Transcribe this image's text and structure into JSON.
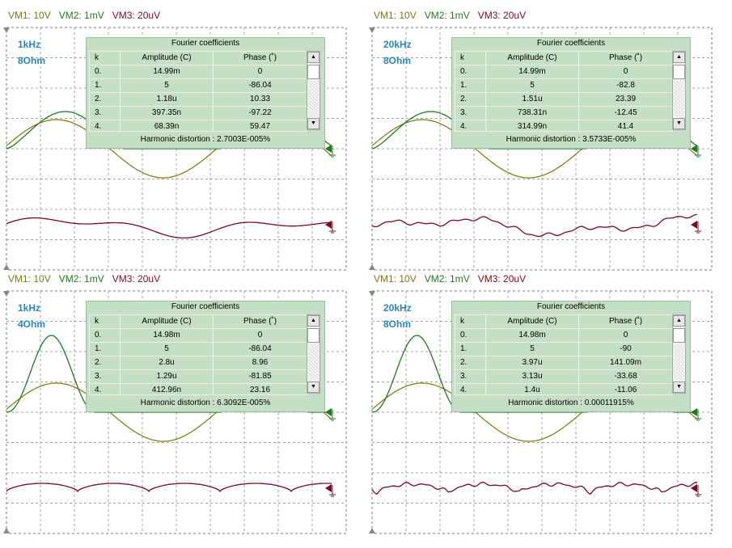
{
  "colors": {
    "vm1": "#7a7a0a",
    "vm2": "#1f7a1f",
    "vm3": "#7a0a1f",
    "annotation": "#2a86b8",
    "panel_bg": "#c4dfc4",
    "grid": "#9a9a9a"
  },
  "fourier_columns": {
    "k": "k",
    "amplitude": "Amplitude (C)",
    "phase": "Phase (˚)"
  },
  "panels": [
    {
      "legend": {
        "vm1": "VM1: 10V",
        "vm2": "VM2: 1mV",
        "vm3": "VM3: 20uV"
      },
      "annotation": [
        "1kHz",
        "8Ohm"
      ],
      "fourier": {
        "title": "Fourier coefficients",
        "rows": [
          {
            "k": "0.",
            "amplitude": "14.99m",
            "phase": "0"
          },
          {
            "k": "1.",
            "amplitude": "5",
            "phase": "-86.04"
          },
          {
            "k": "2.",
            "amplitude": "1.18u",
            "phase": "10.33"
          },
          {
            "k": "3.",
            "amplitude": "397.35n",
            "phase": "-97.22"
          },
          {
            "k": "4.",
            "amplitude": "68.39n",
            "phase": "59.47"
          }
        ],
        "distortion_label": "Harmonic distortion :",
        "distortion_value": "2.7003E-005%"
      }
    },
    {
      "legend": {
        "vm1": "VM1: 10V",
        "vm2": "VM2: 1mV",
        "vm3": "VM3: 20uV"
      },
      "annotation": [
        "20kHz",
        "8Ohm"
      ],
      "fourier": {
        "title": "Fourier coefficients",
        "rows": [
          {
            "k": "0.",
            "amplitude": "14.99m",
            "phase": "0"
          },
          {
            "k": "1.",
            "amplitude": "5",
            "phase": "-82.8"
          },
          {
            "k": "2.",
            "amplitude": "1.51u",
            "phase": "23.39"
          },
          {
            "k": "3.",
            "amplitude": "738.31n",
            "phase": "-12.45"
          },
          {
            "k": "4.",
            "amplitude": "314.99n",
            "phase": "41.4"
          }
        ],
        "distortion_label": "Harmonic distortion :",
        "distortion_value": "3.5733E-005%"
      }
    },
    {
      "legend": {
        "vm1": "VM1: 10V",
        "vm2": "VM2: 1mV",
        "vm3": "VM3: 20uV"
      },
      "annotation": [
        "1kHz",
        "4Ohm"
      ],
      "fourier": {
        "title": "Fourier coefficients",
        "rows": [
          {
            "k": "0.",
            "amplitude": "14.98m",
            "phase": "0"
          },
          {
            "k": "1.",
            "amplitude": "5",
            "phase": "-86.04"
          },
          {
            "k": "2.",
            "amplitude": "2.8u",
            "phase": "8.96"
          },
          {
            "k": "3.",
            "amplitude": "1.29u",
            "phase": "-81.85"
          },
          {
            "k": "4.",
            "amplitude": "412.96n",
            "phase": "23.16"
          }
        ],
        "distortion_label": "Harmonic distortion :",
        "distortion_value": "6.3092E-005%"
      }
    },
    {
      "legend": {
        "vm1": "VM1: 10V",
        "vm2": "VM2: 1mV",
        "vm3": "VM3: 20uV"
      },
      "annotation": [
        "20kHz",
        "8Ohm"
      ],
      "fourier": {
        "title": "Fourier coefficients",
        "rows": [
          {
            "k": "0.",
            "amplitude": "14.98m",
            "phase": "0"
          },
          {
            "k": "1.",
            "amplitude": "5",
            "phase": "-90"
          },
          {
            "k": "2.",
            "amplitude": "3.97u",
            "phase": "141.09m"
          },
          {
            "k": "3.",
            "amplitude": "3.13u",
            "phase": "-33.68"
          },
          {
            "k": "4.",
            "amplitude": "1.4u",
            "phase": "-11.06"
          }
        ],
        "distortion_label": "Harmonic distortion :",
        "distortion_value": "0.00011915%"
      }
    }
  ]
}
